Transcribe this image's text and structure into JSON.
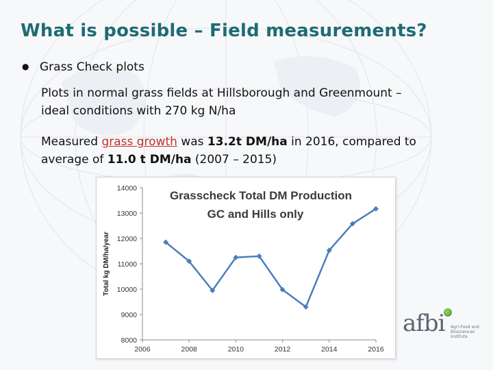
{
  "slide": {
    "title": "What is possible – Field measurements?",
    "bullet": "Grass Check plots",
    "para1_line1": "Plots in normal grass fields at Hillsborough and Greenmount –",
    "para1_line2": "ideal conditions with 270 kg N/ha",
    "para2_pre": "Measured ",
    "para2_highlight": "grass growth",
    "para2_mid": " was ",
    "para2_value": "13.2t DM/ha",
    "para2_post": " in 2016, compared to",
    "para3_pre": "average of ",
    "para3_value": "11.0 t DM/ha",
    "para3_post": " (2007 – 2015)",
    "accent_color": "#1f6b73",
    "highlight_color": "#c0302a"
  },
  "logo": {
    "text": "afbi",
    "subtitle": "Agri-Food and Biosciences Institute"
  },
  "chart_data": {
    "type": "line",
    "title_line1": "Grasscheck Total DM Production",
    "title_line2": "GC and Hills only",
    "ylabel": "Total kg DM/ha/year",
    "xlabel": "",
    "xlim": [
      2006,
      2016
    ],
    "ylim": [
      8000,
      14000
    ],
    "xticks": [
      "2006",
      "2008",
      "2010",
      "2012",
      "2014",
      "2016"
    ],
    "yticks": [
      "8000",
      "9000",
      "10000",
      "11000",
      "12000",
      "13000",
      "14000"
    ],
    "x": [
      2007,
      2008,
      2009,
      2010,
      2011,
      2012,
      2013,
      2014,
      2015,
      2016
    ],
    "values": [
      11850,
      11100,
      9950,
      11250,
      11300,
      9980,
      9300,
      11530,
      12580,
      13170
    ],
    "line_color": "#4a7ebb",
    "grid": false
  }
}
